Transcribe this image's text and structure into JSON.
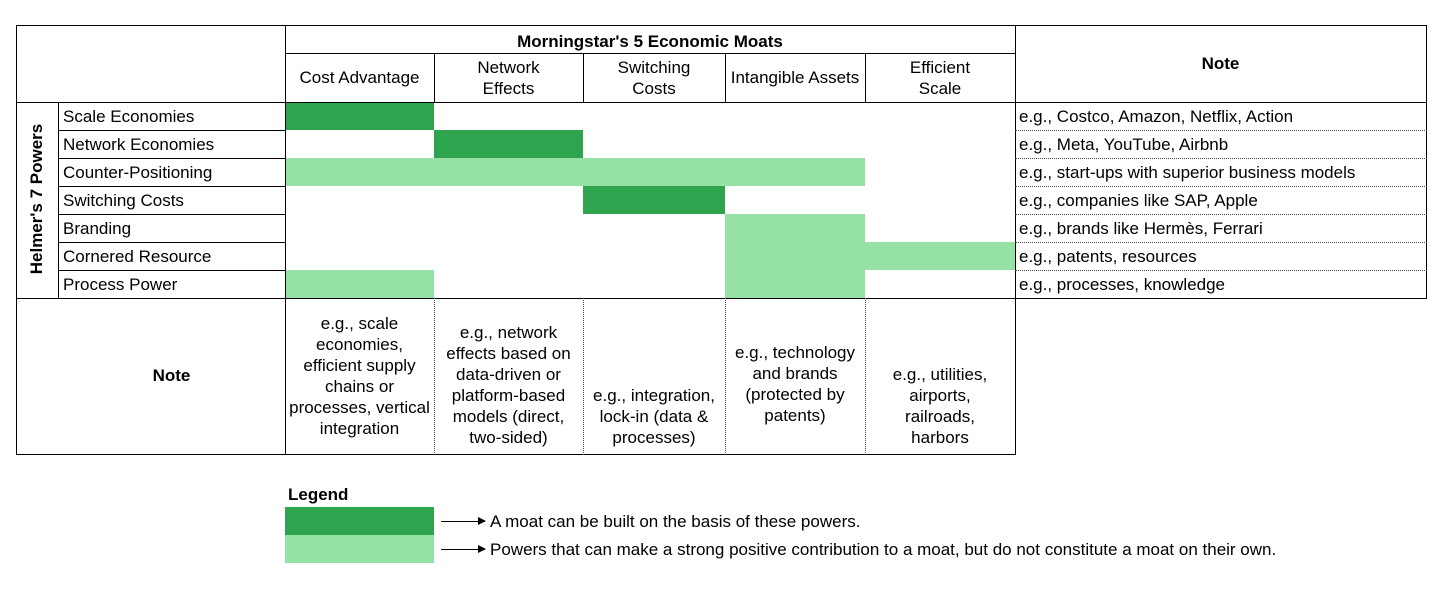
{
  "header": {
    "group_title": "Morningstar's 5 Economic Moats",
    "note_label": "Note",
    "moats": [
      "Cost Advantage",
      "Network Effects",
      "Switching Costs",
      "Intangible Assets",
      "Efficient Scale"
    ]
  },
  "side_label": "Helmer's 7 Powers",
  "rows": [
    {
      "power": "Scale Economies",
      "note": "e.g., Costco, Amazon, Netflix, Action"
    },
    {
      "power": "Network Economies",
      "note": "e.g., Meta, YouTube, Airbnb"
    },
    {
      "power": "Counter-Positioning",
      "note": "e.g., start-ups with superior business models"
    },
    {
      "power": "Switching Costs",
      "note": "e.g., companies like SAP, Apple"
    },
    {
      "power": "Branding",
      "note": "e.g., brands like Hermès, Ferrari"
    },
    {
      "power": "Cornered Resource",
      "note": "e.g., patents, resources"
    },
    {
      "power": "Process Power",
      "note": "e.g., processes, knowledge"
    }
  ],
  "matrix": [
    [
      "dark",
      "",
      "",
      "",
      ""
    ],
    [
      "",
      "dark",
      "",
      "",
      ""
    ],
    [
      "light",
      "light",
      "light",
      "light",
      ""
    ],
    [
      "",
      "",
      "dark",
      "",
      ""
    ],
    [
      "",
      "",
      "",
      "light",
      ""
    ],
    [
      "",
      "",
      "",
      "light",
      "light"
    ],
    [
      "light",
      "",
      "",
      "light",
      ""
    ]
  ],
  "bottom": {
    "note_label": "Note",
    "notes": [
      "e.g., scale economies, efficient supply chains or processes, vertical integration",
      "e.g., network effects based on data-driven or platform-based models (direct, two-sided)",
      "e.g., integration, lock-in (data & processes)",
      "e.g., technology and brands (protected by patents)",
      "e.g., utilities, airports, railroads, harbors"
    ]
  },
  "legend": {
    "title": "Legend",
    "items": [
      {
        "level": "dark",
        "text": "A moat can be built on the basis of these powers."
      },
      {
        "level": "light",
        "text": "Powers that can make a strong positive contribution to a moat, but do not constitute a moat on their own."
      }
    ]
  },
  "colors": {
    "dark": "#2ea44f",
    "light": "#95e2a4",
    "border": "#000000"
  }
}
